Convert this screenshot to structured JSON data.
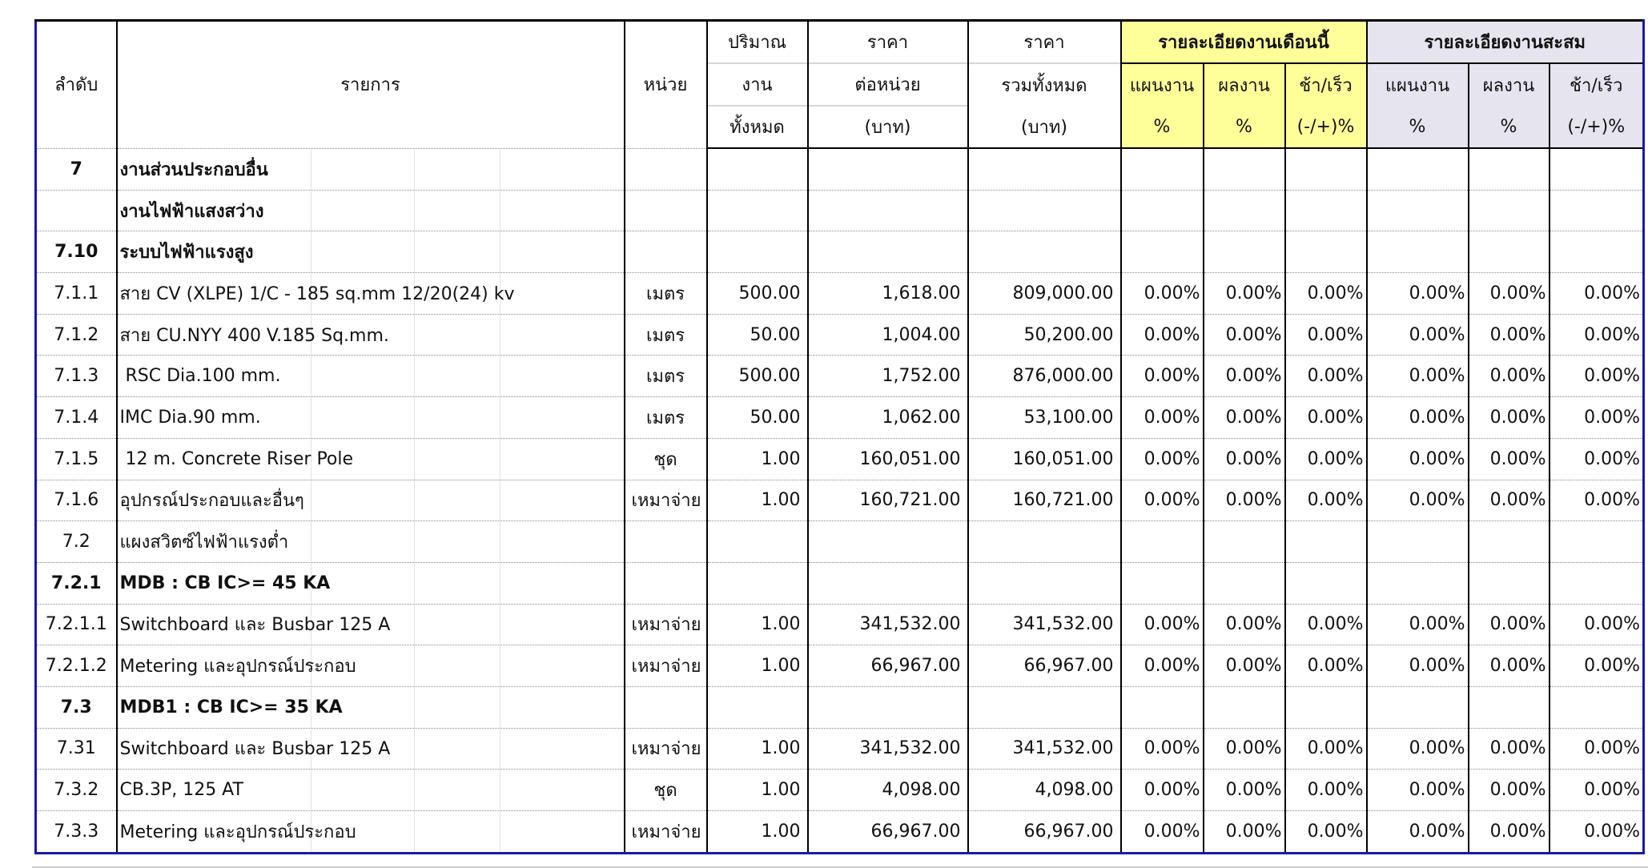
{
  "header": {
    "no": "ลำดับ",
    "desc": "รายการ",
    "unit": "หน่วย",
    "qty": [
      "ปริมาณ",
      "งาน",
      "ทั้งหมด"
    ],
    "unit_price": [
      "ราคา",
      "ต่อหน่วย",
      "(บาท)"
    ],
    "total_price": [
      "ราคา",
      "รวมทั้งหมด",
      "(บาท)"
    ],
    "this_month": {
      "title": "รายละเอียดงานเดือนนี้",
      "plan": [
        "แผนงาน",
        "%"
      ],
      "actual": [
        "ผลงาน",
        "%"
      ],
      "diff": [
        "ช้า/เร็ว",
        "(-/+)%"
      ]
    },
    "cumulative": {
      "title": "รายละเอียดงานสะสม",
      "plan": [
        "แผนงาน",
        "%"
      ],
      "actual": [
        "ผลงาน",
        "%"
      ],
      "diff": [
        "ช้า/เร็ว",
        "(-/+)%"
      ]
    }
  },
  "colors": {
    "this_month_bg": "#ffff99",
    "cumulative_bg": "#e6e4ee",
    "frame_blue": "#1a1aa6"
  },
  "rows": [
    {
      "no": "7",
      "desc": "งานส่วนประกอบอื่น",
      "bold": true,
      "unit": "",
      "qty": "",
      "unit_price": "",
      "total": "",
      "pcts": [
        "",
        "",
        "",
        "",
        "",
        ""
      ]
    },
    {
      "no": "",
      "desc": "งานไฟฟ้าแสงสว่าง",
      "bold": true,
      "unit": "",
      "qty": "",
      "unit_price": "",
      "total": "",
      "pcts": [
        "",
        "",
        "",
        "",
        "",
        ""
      ]
    },
    {
      "no": "7.10",
      "desc": "ระบบไฟฟ้าแรงสูง",
      "bold": true,
      "unit": "",
      "qty": "",
      "unit_price": "",
      "total": "",
      "pcts": [
        "",
        "",
        "",
        "",
        "",
        ""
      ]
    },
    {
      "no": "7.1.1",
      "desc": "สาย CV (XLPE) 1/C - 185 sq.mm 12/20(24) kv",
      "bold": false,
      "unit": "เมตร",
      "qty": "500.00",
      "unit_price": "1,618.00",
      "total": "809,000.00",
      "pcts": [
        "0.00%",
        "0.00%",
        "0.00%",
        "0.00%",
        "0.00%",
        "0.00%"
      ]
    },
    {
      "no": "7.1.2",
      "desc": "สาย CU.NYY 400 V.185 Sq.mm.",
      "bold": false,
      "unit": "เมตร",
      "qty": "50.00",
      "unit_price": "1,004.00",
      "total": "50,200.00",
      "pcts": [
        "0.00%",
        "0.00%",
        "0.00%",
        "0.00%",
        "0.00%",
        "0.00%"
      ]
    },
    {
      "no": "7.1.3",
      "desc": " RSC Dia.100 mm.",
      "bold": false,
      "unit": "เมตร",
      "qty": "500.00",
      "unit_price": "1,752.00",
      "total": "876,000.00",
      "pcts": [
        "0.00%",
        "0.00%",
        "0.00%",
        "0.00%",
        "0.00%",
        "0.00%"
      ]
    },
    {
      "no": "7.1.4",
      "desc": "IMC Dia.90 mm.",
      "bold": false,
      "unit": "เมตร",
      "qty": "50.00",
      "unit_price": "1,062.00",
      "total": "53,100.00",
      "pcts": [
        "0.00%",
        "0.00%",
        "0.00%",
        "0.00%",
        "0.00%",
        "0.00%"
      ]
    },
    {
      "no": "7.1.5",
      "desc": " 12 m. Concrete Riser Pole",
      "bold": false,
      "unit": "ชุด",
      "qty": "1.00",
      "unit_price": "160,051.00",
      "total": "160,051.00",
      "pcts": [
        "0.00%",
        "0.00%",
        "0.00%",
        "0.00%",
        "0.00%",
        "0.00%"
      ]
    },
    {
      "no": "7.1.6",
      "desc": "อุปกรณ์ประกอบและอื่นๆ",
      "bold": false,
      "unit": "เหมาจ่าย",
      "qty": "1.00",
      "unit_price": "160,721.00",
      "total": "160,721.00",
      "pcts": [
        "0.00%",
        "0.00%",
        "0.00%",
        "0.00%",
        "0.00%",
        "0.00%"
      ]
    },
    {
      "no": "7.2",
      "desc": "แผงสวิตซ์ไฟฟ้าแรงต่ำ",
      "bold": false,
      "unit": "",
      "qty": "",
      "unit_price": "",
      "total": "",
      "pcts": [
        "",
        "",
        "",
        "",
        "",
        ""
      ]
    },
    {
      "no": "7.2.1",
      "desc": "MDB : CB IC>= 45 KA",
      "bold": true,
      "unit": "",
      "qty": "",
      "unit_price": "",
      "total": "",
      "pcts": [
        "",
        "",
        "",
        "",
        "",
        ""
      ]
    },
    {
      "no": "7.2.1.1",
      "desc": "Switchboard และ Busbar 125 A",
      "bold": false,
      "unit": "เหมาจ่าย",
      "qty": "1.00",
      "unit_price": "341,532.00",
      "total": "341,532.00",
      "pcts": [
        "0.00%",
        "0.00%",
        "0.00%",
        "0.00%",
        "0.00%",
        "0.00%"
      ]
    },
    {
      "no": "7.2.1.2",
      "desc": "Metering และอุปกรณ์ประกอบ",
      "bold": false,
      "unit": "เหมาจ่าย",
      "qty": "1.00",
      "unit_price": "66,967.00",
      "total": "66,967.00",
      "pcts": [
        "0.00%",
        "0.00%",
        "0.00%",
        "0.00%",
        "0.00%",
        "0.00%"
      ]
    },
    {
      "no": "7.3",
      "desc": "MDB1 : CB IC>= 35 KA",
      "bold": true,
      "unit": "",
      "qty": "",
      "unit_price": "",
      "total": "",
      "pcts": [
        "",
        "",
        "",
        "",
        "",
        ""
      ]
    },
    {
      "no": "7.31",
      "desc": "Switchboard และ Busbar 125 A",
      "bold": false,
      "unit": "เหมาจ่าย",
      "qty": "1.00",
      "unit_price": "341,532.00",
      "total": "341,532.00",
      "pcts": [
        "0.00%",
        "0.00%",
        "0.00%",
        "0.00%",
        "0.00%",
        "0.00%"
      ]
    },
    {
      "no": "7.3.2",
      "desc": "CB.3P, 125 AT",
      "bold": false,
      "unit": "ชุด",
      "qty": "1.00",
      "unit_price": "4,098.00",
      "total": "4,098.00",
      "pcts": [
        "0.00%",
        "0.00%",
        "0.00%",
        "0.00%",
        "0.00%",
        "0.00%"
      ]
    },
    {
      "no": "7.3.3",
      "desc": "Metering และอุปกรณ์ประกอบ",
      "bold": false,
      "unit": "เหมาจ่าย",
      "qty": "1.00",
      "unit_price": "66,967.00",
      "total": "66,967.00",
      "pcts": [
        "0.00%",
        "0.00%",
        "0.00%",
        "0.00%",
        "0.00%",
        "0.00%"
      ]
    }
  ]
}
